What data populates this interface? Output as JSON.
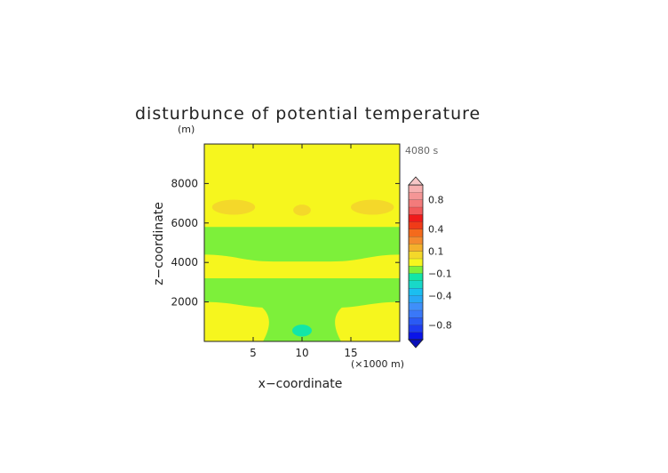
{
  "chart_data": {
    "type": "heatmap",
    "title": "disturbunce of potential temperature",
    "unit_label": "(m)",
    "time_label": "4080 s",
    "xlabel": "x−coordinate",
    "ylabel": "z−coordinate",
    "x_scale_note": "(×1000 m)",
    "xlim": [
      0,
      20
    ],
    "ylim": [
      0,
      10000
    ],
    "x_ticks": [
      5,
      10,
      15
    ],
    "x_tick_labels": [
      "5",
      "10",
      "15"
    ],
    "y_ticks": [
      2000,
      4000,
      6000,
      8000
    ],
    "y_tick_labels": [
      "2000",
      "4000",
      "6000",
      "8000"
    ],
    "colorbar": {
      "levels": [
        -1.0,
        -0.9,
        -0.8,
        -0.7,
        -0.6,
        -0.5,
        -0.4,
        -0.3,
        -0.2,
        -0.1,
        -0.05,
        0.05,
        0.1,
        0.2,
        0.3,
        0.4,
        0.5,
        0.6,
        0.7,
        0.8,
        0.9,
        1.0
      ],
      "colors": [
        "#0a14e8",
        "#1e3cf0",
        "#2a5af4",
        "#3a78f8",
        "#3f8ffa",
        "#28a8f6",
        "#1bbef0",
        "#18d8c8",
        "#12e6a8",
        "#7df03a",
        "#f6f61e",
        "#f4d82a",
        "#f4b02c",
        "#f48a2e",
        "#f46a1c",
        "#f03b18",
        "#f01a1a",
        "#f25a5a",
        "#f37b7b",
        "#f59696",
        "#f7b0b0"
      ],
      "tick_values": [
        -0.8,
        -0.4,
        -0.1,
        0.1,
        0.4,
        0.8
      ],
      "tick_labels": [
        "−0.8",
        "−0.4",
        "−0.1",
        "0.1",
        "0.4",
        "0.8"
      ],
      "extend": "both",
      "placement": "right"
    },
    "background_value": 0.0,
    "regions": [
      {
        "value": -0.07,
        "kind": "band",
        "zmin": 4400,
        "zmax": 5800,
        "left_center": 0.5,
        "right_center": 19.5,
        "bulge": 0.6
      },
      {
        "value": -0.07,
        "kind": "band",
        "zmin": 2000,
        "zmax": 3200,
        "left_center": 0.5,
        "right_center": 19.5,
        "bulge": 0.6
      },
      {
        "value": -0.07,
        "kind": "plume",
        "x_center": 10,
        "zmin": 0,
        "zmax": 2000
      },
      {
        "value": -0.2,
        "kind": "blob",
        "x_center": 10,
        "z_center": 550,
        "x_half_width": 1.0,
        "z_half_height": 300
      },
      {
        "value": 0.07,
        "kind": "blob",
        "x_center": 3.0,
        "z_center": 6800,
        "x_half_width": 2.2,
        "z_half_height": 380
      },
      {
        "value": 0.07,
        "kind": "blob",
        "x_center": 10.0,
        "z_center": 6650,
        "x_half_width": 0.9,
        "z_half_height": 280
      },
      {
        "value": 0.07,
        "kind": "blob",
        "x_center": 17.2,
        "z_center": 6800,
        "x_half_width": 2.2,
        "z_half_height": 380
      }
    ]
  }
}
